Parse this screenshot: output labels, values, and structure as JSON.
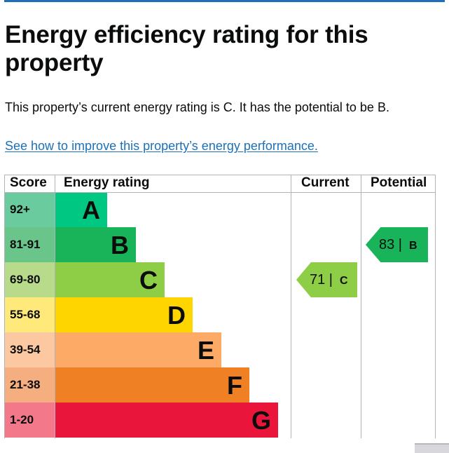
{
  "page": {
    "title": "Energy efficiency rating for this property",
    "summary": "This property’s current energy rating is C. It has the potential to be B.",
    "improve_link": "See how to improve this property’s energy performance."
  },
  "table": {
    "headers": {
      "score": "Score",
      "rating": "Energy rating",
      "current": "Current",
      "potential": "Potential"
    },
    "bands": [
      {
        "score": "92+",
        "letter": "A",
        "score_color": "#6acb9e",
        "bar_color": "#00c781",
        "bar_fraction": 0.13
      },
      {
        "score": "81-91",
        "letter": "B",
        "score_color": "#6ac58a",
        "bar_color": "#19b459",
        "bar_fraction": 0.2
      },
      {
        "score": "69-80",
        "letter": "C",
        "score_color": "#b7db8a",
        "bar_color": "#8dce46",
        "bar_fraction": 0.27
      },
      {
        "score": "55-68",
        "letter": "D",
        "score_color": "#ffe97a",
        "bar_color": "#ffd500",
        "bar_fraction": 0.34
      },
      {
        "score": "39-54",
        "letter": "E",
        "score_color": "#fcc8a1",
        "bar_color": "#fcaa65",
        "bar_fraction": 0.41
      },
      {
        "score": "21-38",
        "letter": "F",
        "score_color": "#f4ae80",
        "bar_color": "#ef8023",
        "bar_fraction": 0.48
      },
      {
        "score": "1-20",
        "letter": "G",
        "score_color": "#f3798a",
        "bar_color": "#e9153b",
        "bar_fraction": 0.55
      }
    ],
    "current": {
      "value": "71 |",
      "letter": "C",
      "color": "#8dce46"
    },
    "potential": {
      "value": "83 |",
      "letter": "B",
      "color": "#19b459"
    }
  }
}
